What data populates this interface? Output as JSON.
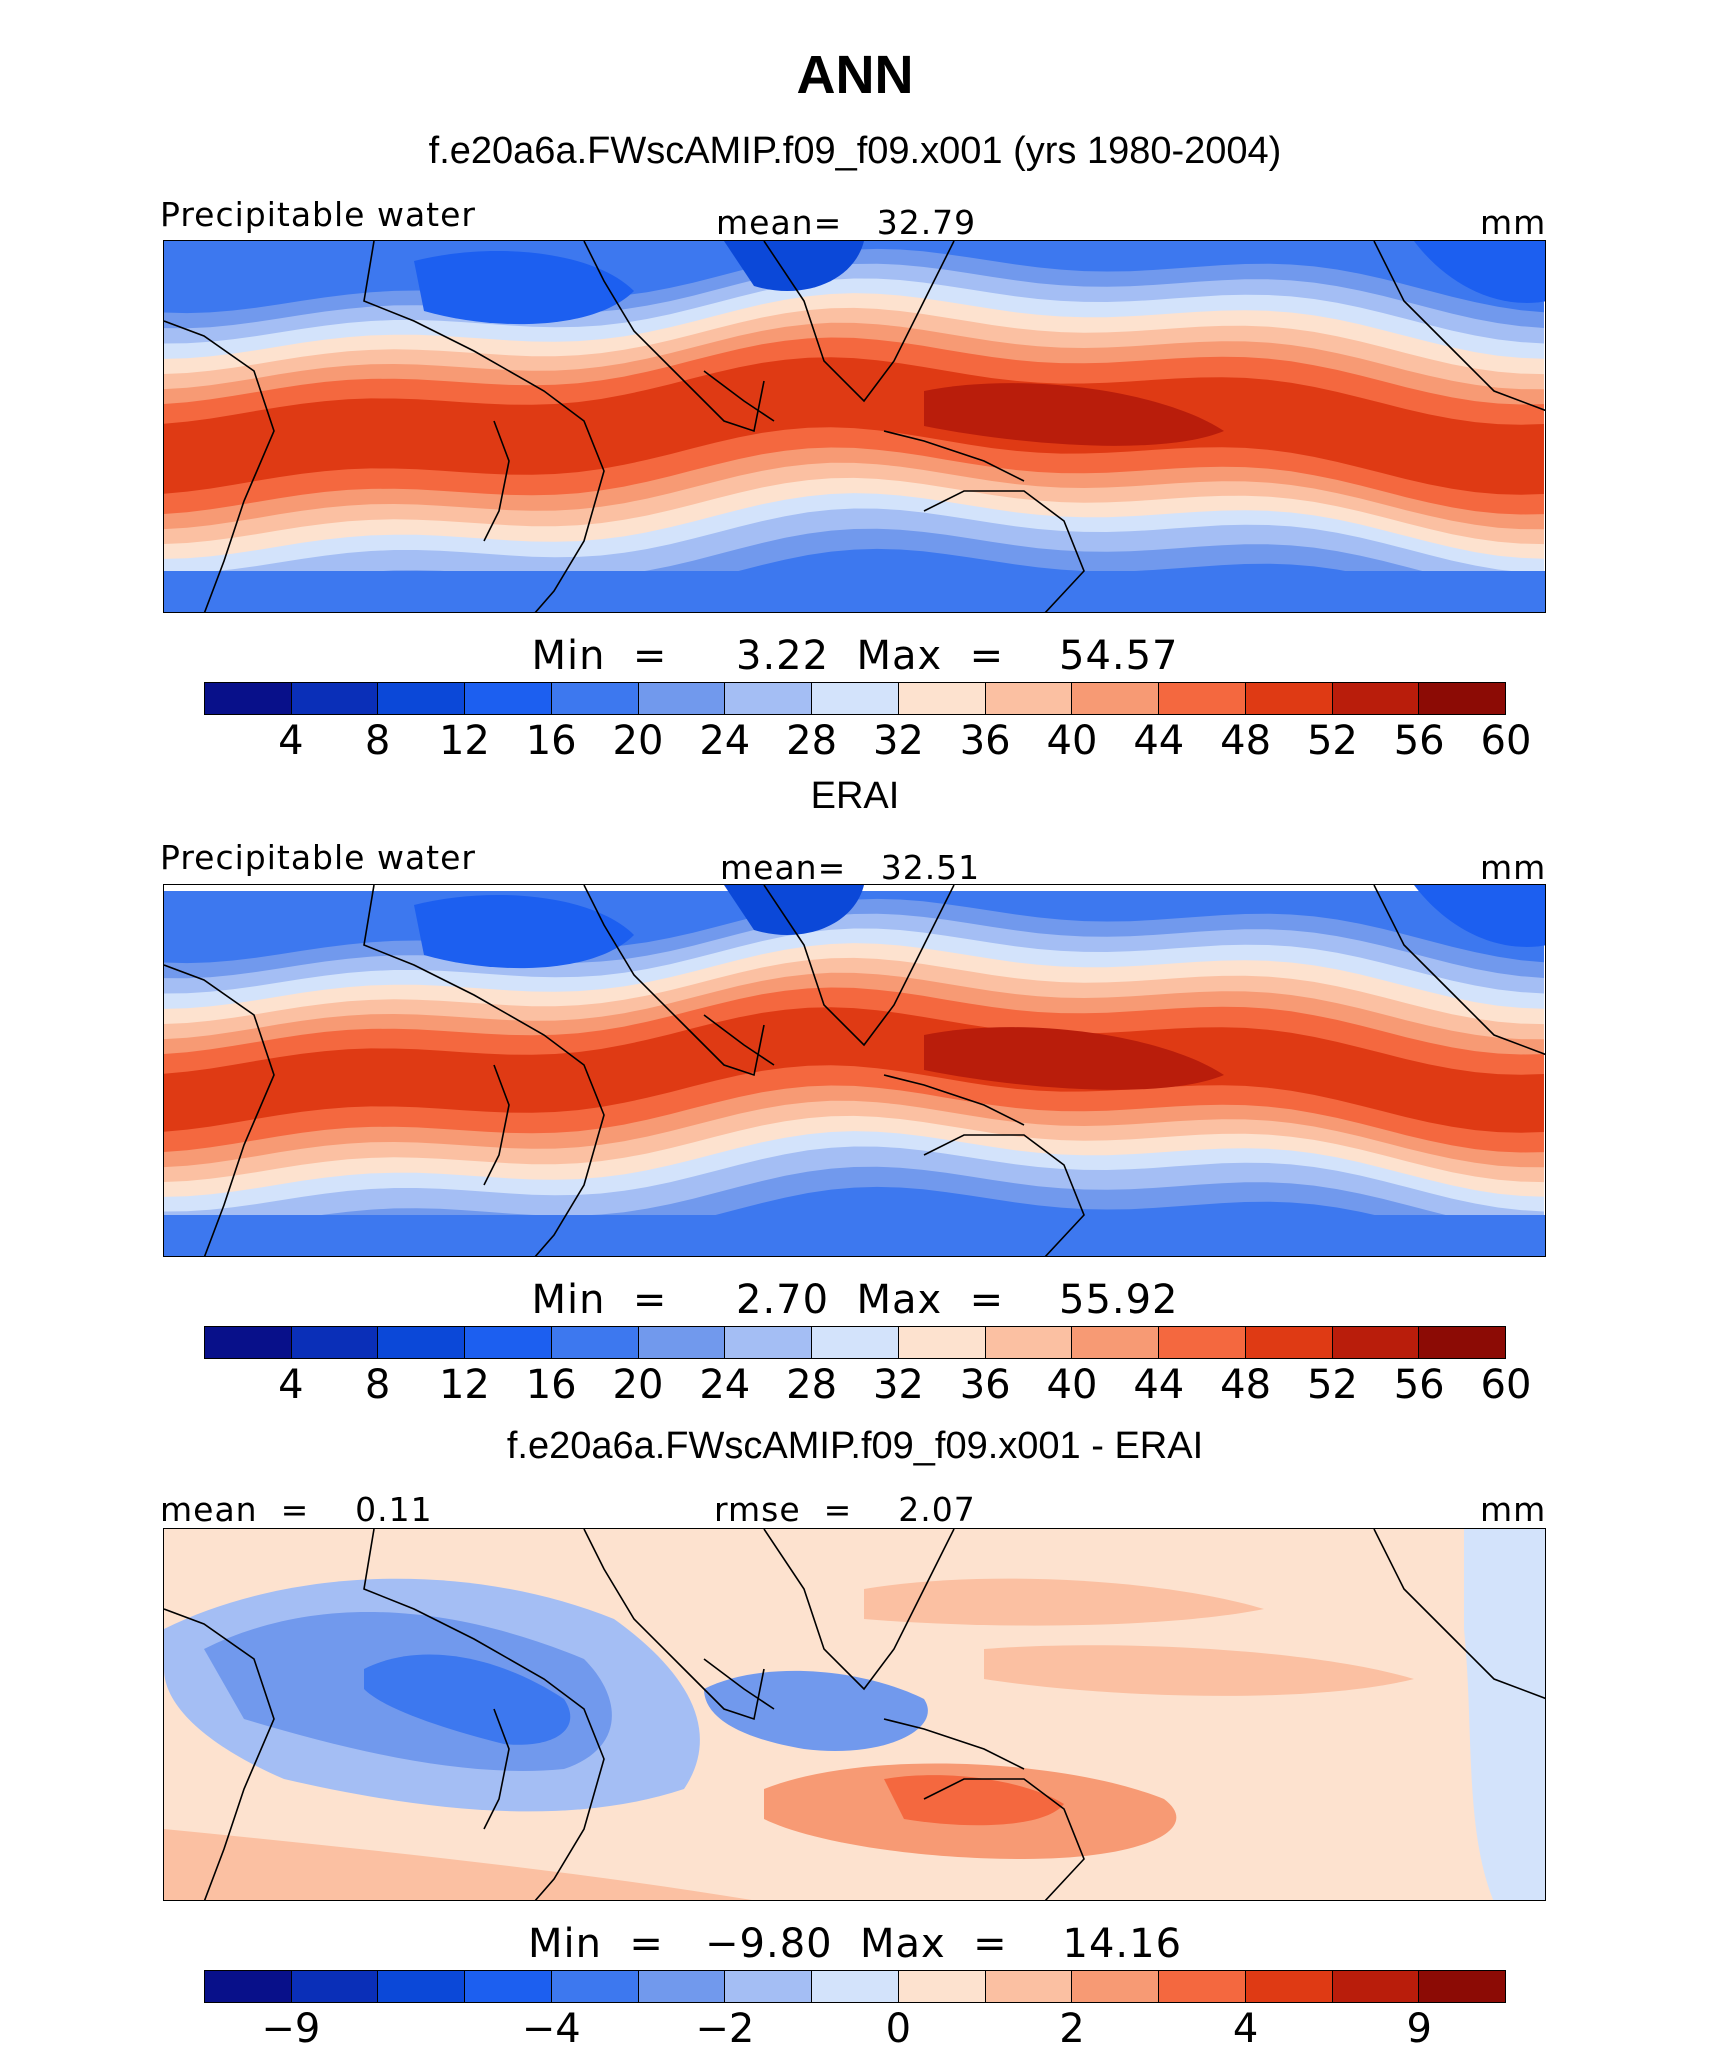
{
  "title": "ANN",
  "colors": [
    "#08108a",
    "#0a2fb8",
    "#0b48d8",
    "#1c5ff0",
    "#3d78ef",
    "#7199ed",
    "#a4bef4",
    "#d3e3fb",
    "#fde2cf",
    "#fbc0a2",
    "#f79a74",
    "#f4683f",
    "#df3a14",
    "#b91d0b",
    "#8c0b05"
  ],
  "panels": [
    {
      "heading": "f.e20a6a.FWscAMIP.f09_f09.x001 (yrs 1980-2004)",
      "left_label": "Precipitable water",
      "center_label": "mean=   32.79",
      "unit": "mm",
      "stats": "Min  =     3.22  Max  =    54.57",
      "colorbar_ticks": [
        "4",
        "8",
        "12",
        "16",
        "20",
        "24",
        "28",
        "32",
        "36",
        "40",
        "44",
        "48",
        "52",
        "56",
        "60"
      ]
    },
    {
      "heading": "ERAI",
      "left_label": "Precipitable water",
      "center_label": "mean=   32.51",
      "unit": "mm",
      "stats": "Min  =     2.70  Max  =    55.92",
      "colorbar_ticks": [
        "4",
        "8",
        "12",
        "16",
        "20",
        "24",
        "28",
        "32",
        "36",
        "40",
        "44",
        "48",
        "52",
        "56",
        "60"
      ]
    },
    {
      "heading": "f.e20a6a.FWscAMIP.f09_f09.x001 - ERAI",
      "left_label": "mean  =    0.11",
      "center_label": "rmse  =    2.07",
      "unit": "mm",
      "stats": "Min  =   −9.80  Max  =    14.16",
      "colorbar_ticks": [
        "−9",
        "−4",
        "−2",
        "0",
        "2",
        "4",
        "9"
      ]
    }
  ]
}
